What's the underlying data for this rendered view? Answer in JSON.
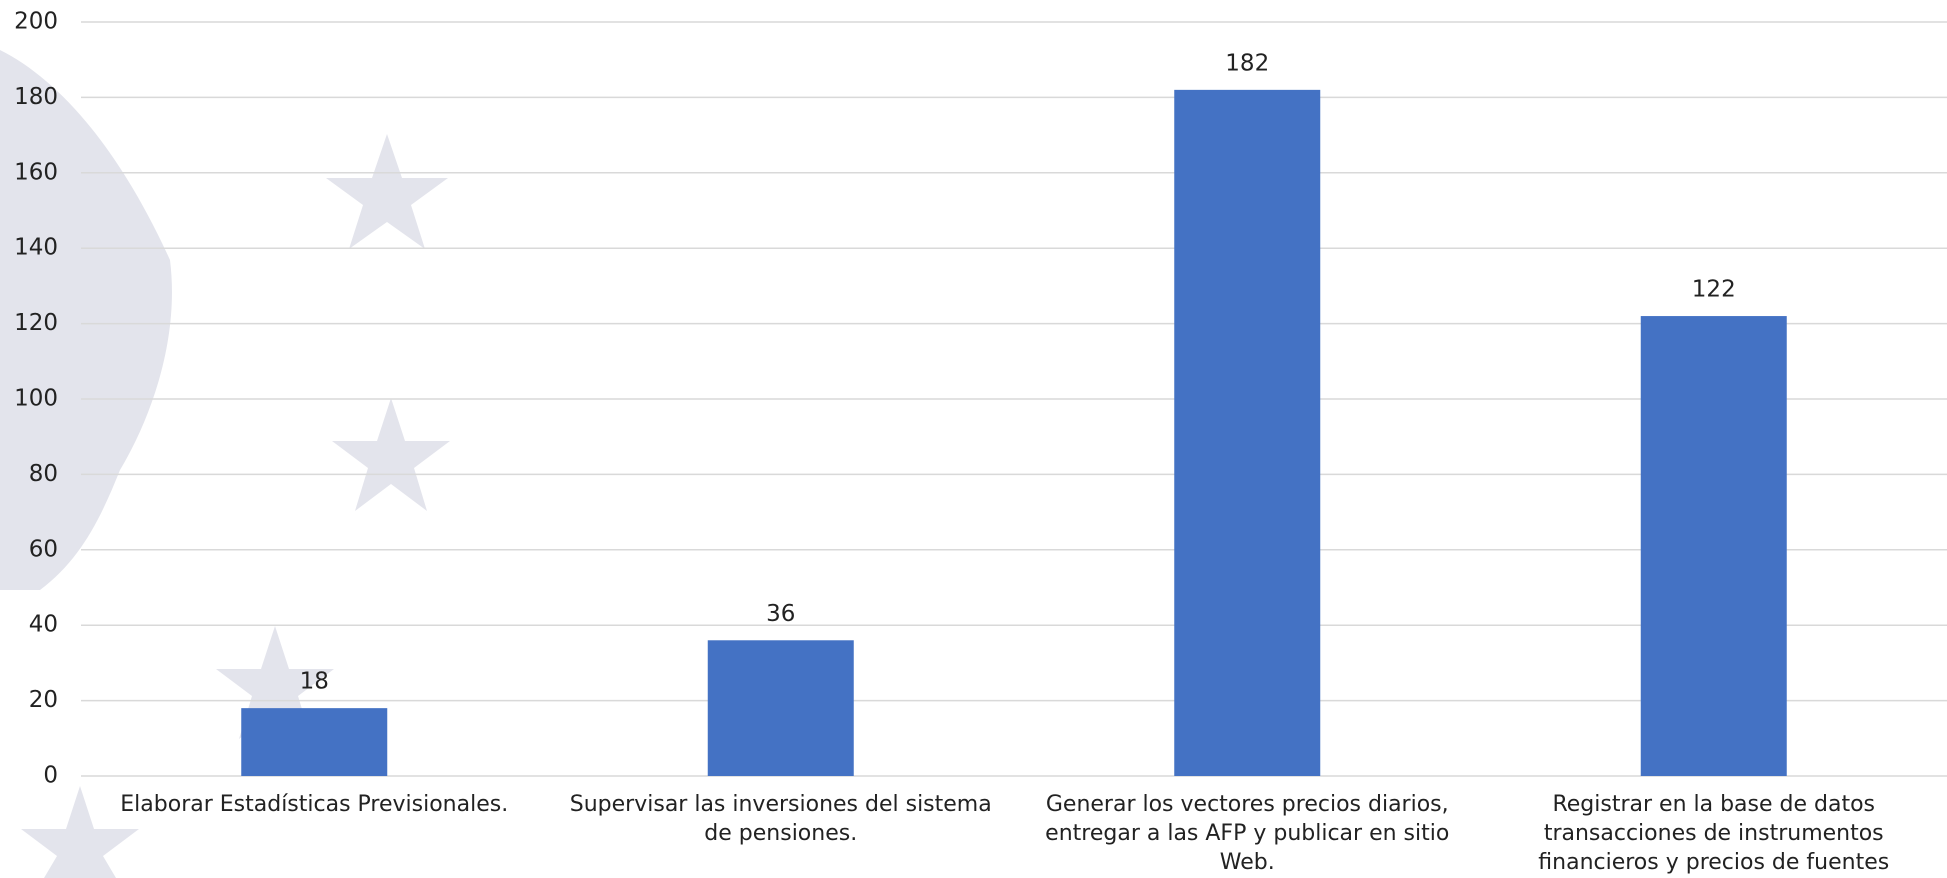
{
  "chart_data": {
    "type": "bar",
    "categories": [
      "Elaborar Estadísticas Previsionales.",
      "Supervisar las inversiones del sistema de pensiones.",
      "Generar los vectores precios diarios, entregar a las AFP y publicar en sitio Web.",
      "Registrar en la base de datos transacciones de instrumentos financieros y precios de fuentes externas"
    ],
    "values": [
      18,
      36,
      182,
      122
    ],
    "color": "#4472c4",
    "ylim": [
      0,
      200
    ],
    "yticks": [
      0,
      20,
      40,
      60,
      80,
      100,
      120,
      140,
      160,
      180,
      200
    ],
    "grid": true
  }
}
